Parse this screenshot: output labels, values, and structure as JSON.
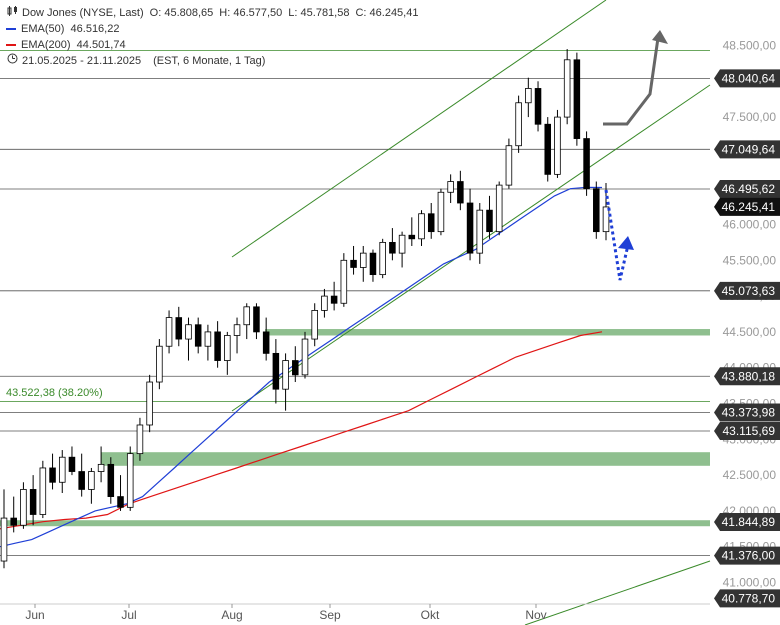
{
  "header": {
    "title": "Dow Jones (NYSE, Last)",
    "open_label": "O:",
    "open": "45.808,65",
    "high_label": "H:",
    "high": "46.577,50",
    "low_label": "L:",
    "low": "45.781,58",
    "close_label": "C:",
    "close": "46.245,41",
    "ema50_label": "EMA(50)",
    "ema50_value": "46.516,22",
    "ema200_label": "EMA(200)",
    "ema200_value": "44.501,74",
    "range": "21.05.2025 - 21.11.2025",
    "range_detail": "(EST, 6 Monate, 1 Tag)",
    "chart_icon": "candlestick-icon",
    "clock_icon": "clock-icon"
  },
  "colors": {
    "ema50": "#1f3fd6",
    "ema200": "#e01515",
    "channel": "#3a8a2a",
    "zone": "#8fbf8f",
    "up_candle": "#ffffff",
    "down_candle": "#000000",
    "arrow_gray": "#666666",
    "arrow_blue": "#1f3fd6",
    "tag_bg": "#333333"
  },
  "chart_data": {
    "type": "candlestick",
    "instrument": "Dow Jones (NYSE, Last)",
    "y_axis_ticks": [
      "48.500,00",
      "48.000,00",
      "47.500,00",
      "47.000,00",
      "46.500,00",
      "46.000,00",
      "45.500,00",
      "45.000,00",
      "44.500,00",
      "44.000,00",
      "43.500,00",
      "43.000,00",
      "42.500,00",
      "42.000,00",
      "41.500,00",
      "41.000,00"
    ],
    "ylim": [
      40700,
      48800
    ],
    "x_axis_ticks": [
      "Jun",
      "Jul",
      "Aug",
      "Sep",
      "Okt",
      "Nov"
    ],
    "price_tags": [
      {
        "label": "48.040,64",
        "value": 48040.64
      },
      {
        "label": "47.049,64",
        "value": 47049.64
      },
      {
        "label": "46.495,62",
        "value": 46495.62
      },
      {
        "label": "46.245,41",
        "value": 46245.41,
        "current": true
      },
      {
        "label": "45.073,63",
        "value": 45073.63
      },
      {
        "label": "43.880,18",
        "value": 43880.18
      },
      {
        "label": "43.373,98",
        "value": 43373.98
      },
      {
        "label": "43.115,69",
        "value": 43115.69
      },
      {
        "label": "41.844,89",
        "value": 41844.89
      },
      {
        "label": "41.376,00",
        "value": 41376.0
      },
      {
        "label": "40.778,70",
        "value": 40778.7
      }
    ],
    "horizontal_lines": [
      48430,
      48040.64,
      47049.64,
      46495.62,
      45073.63,
      43880.18,
      43530,
      43373.98,
      43115.69,
      41844.89,
      41376.0
    ],
    "fib_label": "43.522,38 (38.20%)",
    "fib_value": 43522.38,
    "zones": [
      {
        "low": 44450,
        "high": 44540
      },
      {
        "low": 42630,
        "high": 42820
      },
      {
        "low": 41800,
        "high": 41870
      }
    ],
    "ema50": [
      41500,
      41550,
      41600,
      41700,
      41800,
      41900,
      42000,
      42050,
      42100,
      42200,
      42400,
      42600,
      42800,
      43000,
      43200,
      43400,
      43600,
      43800,
      43950,
      44100,
      44250,
      44400,
      44550,
      44700,
      44850,
      45000,
      45150,
      45300,
      45450,
      45550,
      45650,
      45800,
      45950,
      46100,
      46250,
      46400,
      46500,
      46520,
      46516.22
    ],
    "ema200": [
      41750,
      41800,
      41850,
      41880,
      41900,
      41950,
      42100,
      42200,
      42300,
      42400,
      42500,
      42600,
      42700,
      42800,
      42900,
      43000,
      43100,
      43200,
      43300,
      43400,
      43550,
      43700,
      43850,
      44000,
      44150,
      44250,
      44350,
      44450,
      44501.74
    ],
    "candles": [
      [
        41300,
        42300,
        41200,
        41900
      ],
      [
        41900,
        42200,
        41700,
        41800
      ],
      [
        41800,
        42400,
        41750,
        42300
      ],
      [
        42300,
        42500,
        41800,
        41950
      ],
      [
        41950,
        42700,
        41900,
        42600
      ],
      [
        42600,
        42800,
        42300,
        42400
      ],
      [
        42400,
        42850,
        42250,
        42750
      ],
      [
        42750,
        42900,
        42500,
        42550
      ],
      [
        42550,
        42800,
        42200,
        42300
      ],
      [
        42300,
        42600,
        42100,
        42550
      ],
      [
        42550,
        42900,
        42400,
        42650
      ],
      [
        42650,
        42750,
        42100,
        42200
      ],
      [
        42200,
        42500,
        42000,
        42050
      ],
      [
        42050,
        42900,
        42000,
        42800
      ],
      [
        42800,
        43300,
        42700,
        43200
      ],
      [
        43200,
        43900,
        43100,
        43800
      ],
      [
        43800,
        44400,
        43700,
        44300
      ],
      [
        44300,
        44800,
        44200,
        44700
      ],
      [
        44700,
        44850,
        44300,
        44400
      ],
      [
        44400,
        44700,
        44100,
        44600
      ],
      [
        44600,
        44700,
        44200,
        44300
      ],
      [
        44300,
        44600,
        44100,
        44500
      ],
      [
        44500,
        44650,
        44000,
        44100
      ],
      [
        44100,
        44500,
        43900,
        44450
      ],
      [
        44450,
        44700,
        44200,
        44600
      ],
      [
        44600,
        44900,
        44400,
        44850
      ],
      [
        44850,
        44900,
        44400,
        44500
      ],
      [
        44500,
        44700,
        44100,
        44200
      ],
      [
        44200,
        44400,
        43500,
        43700
      ],
      [
        43700,
        44200,
        43400,
        44100
      ],
      [
        44100,
        44300,
        43800,
        43900
      ],
      [
        43900,
        44500,
        43850,
        44400
      ],
      [
        44400,
        44900,
        44300,
        44800
      ],
      [
        44800,
        45100,
        44700,
        45000
      ],
      [
        45000,
        45200,
        44800,
        44900
      ],
      [
        44900,
        45600,
        44850,
        45500
      ],
      [
        45500,
        45700,
        45300,
        45400
      ],
      [
        45400,
        45700,
        45200,
        45600
      ],
      [
        45600,
        45650,
        45200,
        45300
      ],
      [
        45300,
        45800,
        45250,
        45750
      ],
      [
        45750,
        45950,
        45500,
        45600
      ],
      [
        45600,
        45900,
        45400,
        45850
      ],
      [
        45850,
        46100,
        45700,
        45800
      ],
      [
        45800,
        46200,
        45700,
        46150
      ],
      [
        46150,
        46300,
        45800,
        45900
      ],
      [
        45900,
        46500,
        45850,
        46450
      ],
      [
        46450,
        46700,
        46300,
        46600
      ],
      [
        46600,
        46750,
        46200,
        46300
      ],
      [
        46300,
        46500,
        45500,
        45600
      ],
      [
        45600,
        46300,
        45450,
        46200
      ],
      [
        46200,
        46400,
        45800,
        45900
      ],
      [
        45900,
        46600,
        45850,
        46550
      ],
      [
        46550,
        47200,
        46500,
        47100
      ],
      [
        47100,
        47800,
        47000,
        47700
      ],
      [
        47700,
        48050,
        47500,
        47900
      ],
      [
        47900,
        48000,
        47300,
        47400
      ],
      [
        47400,
        47500,
        46600,
        46700
      ],
      [
        46700,
        47600,
        46650,
        47500
      ],
      [
        47500,
        48450,
        47400,
        48300
      ],
      [
        48300,
        48400,
        47100,
        47200
      ],
      [
        47200,
        47300,
        46400,
        46500
      ],
      [
        46500,
        46600,
        45800,
        45900
      ],
      [
        45900,
        46580,
        45780,
        46245
      ]
    ]
  }
}
